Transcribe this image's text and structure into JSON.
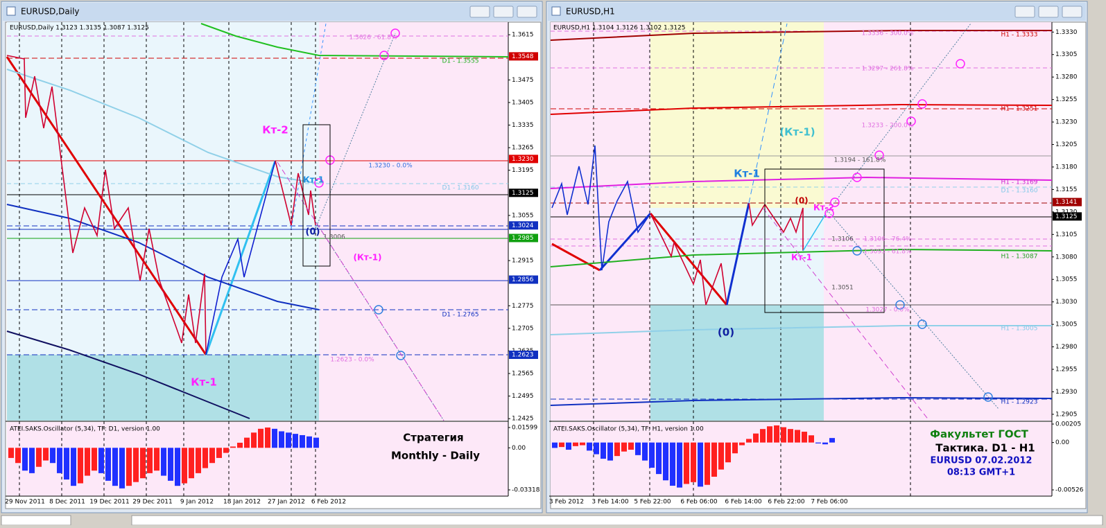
{
  "windows": [
    {
      "title": "EURUSD,Daily",
      "header": "EURUSD,Daily  1.3123 1.3135 1.3087 1.3125",
      "ylim": [
        1.2419,
        1.3654
      ],
      "price_ticks": [
        1.3615,
        1.3475,
        1.3405,
        1.3335,
        1.3265,
        1.3195,
        1.3055,
        1.2915,
        1.2775,
        1.2705,
        1.2635,
        1.2565,
        1.2495,
        1.2425
      ],
      "price_tags": [
        {
          "value": 1.3548,
          "color": "#d00000"
        },
        {
          "value": 1.323,
          "label": "1.3230",
          "color": "#e00000"
        },
        {
          "value": 1.3125,
          "color": "#000000"
        },
        {
          "value": 1.3024,
          "color": "#1030c0"
        },
        {
          "value": 1.2985,
          "color": "#10a010"
        },
        {
          "value": 1.2856,
          "color": "#1030c0"
        },
        {
          "value": 1.2623,
          "color": "#1030c0"
        }
      ],
      "dates": [
        "29 Nov 2011",
        "8 Dec 2011",
        "19 Dec 2011",
        "29 Dec 2011",
        "9 Jan 2012",
        "18 Jan 2012",
        "27 Jan 2012",
        "6 Feb 2012"
      ],
      "annotations": [
        "Кт-2",
        "Кт-1",
        "Кт-1",
        "(0)",
        "(Кт-1)",
        "1.3006",
        "1.3626 - 61.8%",
        "D1 - 1.3555",
        "1.3230 - 0.0%",
        "D1 - 1.3160",
        "D1 - 1.2765",
        "1.2623 - 0.0%"
      ],
      "oscillator": {
        "label": "ATEI.SAKS.Oscillator (5,34), TF: D1, version 1.00",
        "ticks": [
          0.01599,
          {
            "value": 0,
            "label": "0.00"
          },
          -0.03318
        ],
        "values": [
          -0.008,
          -0.012,
          -0.018,
          -0.02,
          -0.015,
          -0.01,
          -0.012,
          -0.02,
          -0.025,
          -0.03,
          -0.028,
          -0.022,
          -0.018,
          -0.02,
          -0.026,
          -0.03,
          -0.032,
          -0.03,
          -0.027,
          -0.024,
          -0.02,
          -0.018,
          -0.022,
          -0.026,
          -0.03,
          -0.028,
          -0.024,
          -0.02,
          -0.016,
          -0.012,
          -0.008,
          -0.004,
          0.001,
          0.004,
          0.008,
          0.012,
          0.015,
          0.016,
          0.015,
          0.013,
          0.012,
          0.011,
          0.01,
          0.009,
          0.008
        ],
        "colors": [
          "#ff2020",
          "#ff2020",
          "#2030ff",
          "#2030ff",
          "#ff2020",
          "#ff2020",
          "#2030ff",
          "#2030ff",
          "#2030ff",
          "#2030ff",
          "#ff2020",
          "#ff2020",
          "#ff2020",
          "#2030ff",
          "#2030ff",
          "#2030ff",
          "#2030ff",
          "#ff2020",
          "#ff2020",
          "#ff2020",
          "#ff2020",
          "#ff2020",
          "#2030ff",
          "#2030ff",
          "#2030ff",
          "#ff2020",
          "#ff2020",
          "#ff2020",
          "#ff2020",
          "#ff2020",
          "#ff2020",
          "#ff2020",
          "#ff2020",
          "#ff2020",
          "#ff2020",
          "#ff2020",
          "#ff2020",
          "#ff2020",
          "#2030ff",
          "#2030ff",
          "#2030ff",
          "#2030ff",
          "#2030ff",
          "#2030ff",
          "#2030ff"
        ]
      },
      "caption": [
        "Стратегия",
        "Monthly - Daily"
      ]
    },
    {
      "title": "EURUSD,H1",
      "header": "EURUSD,H1  1.3104 1.3126 1.3102 1.3125",
      "ylim": [
        1.2898,
        1.3341
      ],
      "price_ticks": [
        {
          "value": 1.333,
          "label": "1.3330"
        },
        1.3305,
        {
          "value": 1.328,
          "label": "1.3280"
        },
        1.3255,
        {
          "value": 1.323,
          "label": "1.3230"
        },
        1.3205,
        {
          "value": 1.318,
          "label": "1.3180"
        },
        1.3155,
        {
          "value": 1.313,
          "label": "1.3130"
        },
        1.3105,
        {
          "value": 1.308,
          "label": "1.3080"
        },
        1.3055,
        {
          "value": 1.303,
          "label": "1.3030"
        },
        1.3005,
        {
          "value": 1.298,
          "label": "1.2980"
        },
        1.2955,
        {
          "value": 1.293,
          "label": "1.2930"
        },
        1.2905
      ],
      "price_tags": [
        {
          "value": 1.3141,
          "color": "#a00000"
        },
        {
          "value": 1.3125,
          "color": "#000000"
        }
      ],
      "dates": [
        "3 Feb 2012",
        "3 Feb 14:00",
        "5 Feb 22:00",
        "6 Feb 06:00",
        "6 Feb 14:00",
        "6 Feb 22:00",
        "7 Feb 06:00"
      ],
      "annotations": [
        "Кт-1",
        "(Кт-1)",
        "(0)",
        "(0)",
        "Кт-2",
        "Кт-1",
        "1.3336 - 300.0%",
        "1.3297 - 261.8%",
        "1.3233 - 200.0%",
        "1.3194 - 161.8%",
        "1.3106",
        "1.3106 - 76.4%",
        "1.3093 - 61.8%",
        "1.3051",
        "1.3027 - 0.0%",
        "H1 - 1.3333",
        "H1 - 1.3251",
        "H1 - 1.3169",
        "D1 - 1.3160",
        "H1 - 1.3087",
        "H1 - 1.3005",
        "H1 - 1.2923"
      ],
      "oscillator": {
        "label": "ATEI.SAKS.Oscillator (5,34), TF: H1, version 1.00",
        "ticks": [
          0.00205,
          {
            "value": 0,
            "label": "0.00"
          },
          -0.00526
        ],
        "values": [
          -0.0006,
          -0.0005,
          -0.0008,
          -0.0004,
          -0.0003,
          -0.0009,
          -0.0013,
          -0.0018,
          -0.002,
          -0.0015,
          -0.001,
          -0.0008,
          -0.0014,
          -0.002,
          -0.0028,
          -0.0035,
          -0.0042,
          -0.0048,
          -0.005,
          -0.0046,
          -0.0044,
          -0.0049,
          -0.0047,
          -0.0038,
          -0.003,
          -0.0022,
          -0.0012,
          -0.0003,
          0.0004,
          0.001,
          0.0015,
          0.0018,
          0.0019,
          0.0017,
          0.0015,
          0.0014,
          0.0012,
          0.0008,
          -0.0001,
          -0.0002,
          0.0005
        ],
        "colors": [
          "#2030ff",
          "#ff2020",
          "#2030ff",
          "#ff2020",
          "#ff2020",
          "#2030ff",
          "#2030ff",
          "#2030ff",
          "#2030ff",
          "#ff2020",
          "#ff2020",
          "#ff2020",
          "#2030ff",
          "#2030ff",
          "#2030ff",
          "#2030ff",
          "#2030ff",
          "#2030ff",
          "#2030ff",
          "#ff2020",
          "#ff2020",
          "#2030ff",
          "#ff2020",
          "#ff2020",
          "#ff2020",
          "#ff2020",
          "#ff2020",
          "#ff2020",
          "#ff2020",
          "#ff2020",
          "#ff2020",
          "#ff2020",
          "#ff2020",
          "#ff2020",
          "#ff2020",
          "#ff2020",
          "#ff2020",
          "#ff2020",
          "#2030ff",
          "#2030ff",
          "#2030ff"
        ]
      },
      "caption": [
        "Факультет ГОСТ",
        "Тактика. D1 - H1",
        "EURUSD 07.02.2012",
        "08:13 GMT+1"
      ]
    }
  ]
}
